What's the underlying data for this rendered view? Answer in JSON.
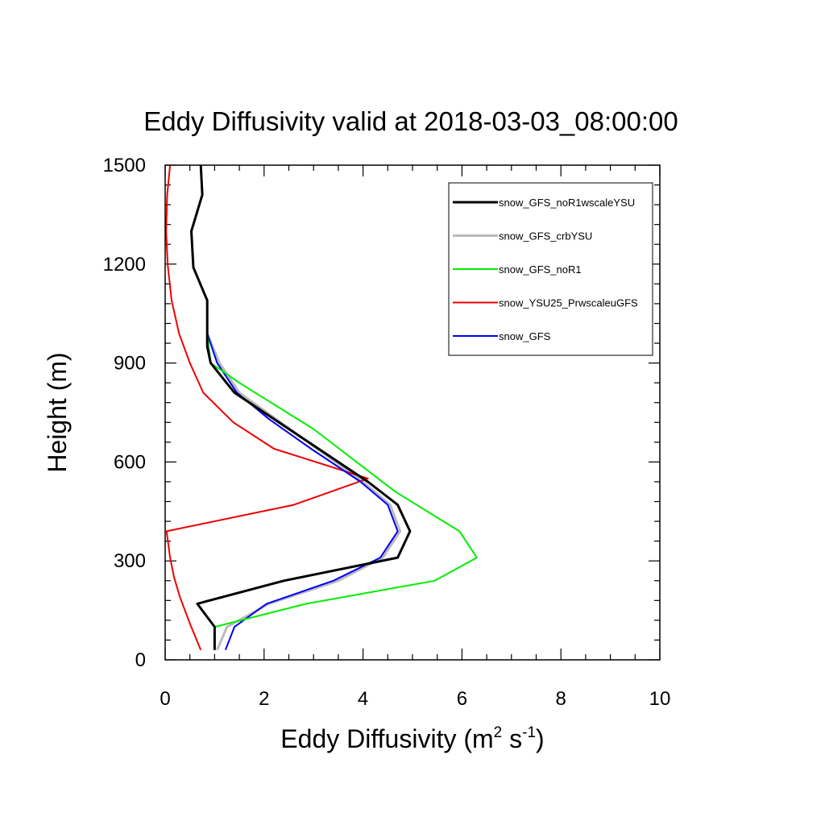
{
  "chart_data": {
    "type": "line",
    "title": "Eddy Diffusivity valid at 2018-03-03_08:00:00",
    "xlabel_main": "Eddy Diffusivity (m",
    "xlabel_sup1": "2",
    "xlabel_mid": " s",
    "xlabel_sup2": "-1",
    "xlabel_end": ")",
    "ylabel": "Height (m)",
    "xlim": [
      0,
      10
    ],
    "ylim": [
      0,
      1500
    ],
    "xticks": [
      0,
      2,
      4,
      6,
      8,
      10
    ],
    "yticks": [
      0,
      300,
      600,
      900,
      1200,
      1500
    ],
    "xtick_labels": [
      "0",
      "2",
      "4",
      "6",
      "8",
      "10"
    ],
    "ytick_labels": [
      "0",
      "300",
      "600",
      "900",
      "1200",
      "1500"
    ],
    "grid": false,
    "legend_position": "top-right",
    "series": [
      {
        "name": "snow_GFS_noR1wscaleYSU",
        "color": "#000000",
        "width": 3,
        "points": [
          [
            1.0,
            30
          ],
          [
            1.0,
            100
          ],
          [
            0.65,
            170
          ],
          [
            2.4,
            240
          ],
          [
            4.7,
            310
          ],
          [
            4.95,
            390
          ],
          [
            4.7,
            470
          ],
          [
            4.1,
            540
          ],
          [
            2.8,
            670
          ],
          [
            1.4,
            810
          ],
          [
            0.92,
            900
          ],
          [
            0.85,
            950
          ],
          [
            0.85,
            1090
          ],
          [
            0.57,
            1190
          ],
          [
            0.53,
            1300
          ],
          [
            0.75,
            1410
          ],
          [
            0.72,
            1500
          ]
        ]
      },
      {
        "name": "snow_GFS_crbYSU",
        "color": "#bbbbbb",
        "width": 3,
        "points": [
          [
            1.05,
            30
          ],
          [
            1.25,
            100
          ],
          [
            2.1,
            170
          ],
          [
            3.5,
            240
          ],
          [
            4.4,
            310
          ],
          [
            4.75,
            390
          ],
          [
            4.55,
            470
          ],
          [
            4.0,
            540
          ],
          [
            2.8,
            670
          ],
          [
            1.5,
            810
          ],
          [
            1.1,
            900
          ],
          [
            0.85,
            990
          ]
        ]
      },
      {
        "name": "snow_GFS_noR1",
        "color": "#00ee00",
        "width": 2,
        "points": [
          [
            1.0,
            30
          ],
          [
            1.0,
            100
          ],
          [
            2.85,
            170
          ],
          [
            5.45,
            240
          ],
          [
            6.3,
            310
          ],
          [
            5.95,
            390
          ],
          [
            4.65,
            510
          ],
          [
            3.0,
            700
          ],
          [
            1.5,
            840
          ],
          [
            0.92,
            900
          ],
          [
            0.85,
            990
          ]
        ]
      },
      {
        "name": "snow_YSU25_PrwscaleuGFS",
        "color": "#ee0000",
        "width": 2,
        "points": [
          [
            0.72,
            30
          ],
          [
            0.5,
            110
          ],
          [
            0.3,
            190
          ],
          [
            0.18,
            250
          ],
          [
            0.1,
            310
          ],
          [
            0.03,
            390
          ],
          [
            2.6,
            470
          ],
          [
            4.1,
            550
          ],
          [
            2.2,
            640
          ],
          [
            1.38,
            720
          ],
          [
            0.77,
            810
          ],
          [
            0.5,
            900
          ],
          [
            0.28,
            990
          ],
          [
            0.13,
            1090
          ],
          [
            0.05,
            1200
          ],
          [
            0.02,
            1300
          ],
          [
            0.04,
            1410
          ],
          [
            0.1,
            1500
          ]
        ]
      },
      {
        "name": "snow_GFS",
        "color": "#0000ee",
        "width": 2,
        "points": [
          [
            1.22,
            30
          ],
          [
            1.4,
            100
          ],
          [
            2.05,
            170
          ],
          [
            3.4,
            240
          ],
          [
            4.35,
            310
          ],
          [
            4.7,
            390
          ],
          [
            4.5,
            470
          ],
          [
            3.95,
            540
          ],
          [
            2.95,
            640
          ],
          [
            2.1,
            730
          ],
          [
            1.45,
            810
          ],
          [
            1.05,
            900
          ],
          [
            0.85,
            990
          ]
        ]
      }
    ]
  }
}
